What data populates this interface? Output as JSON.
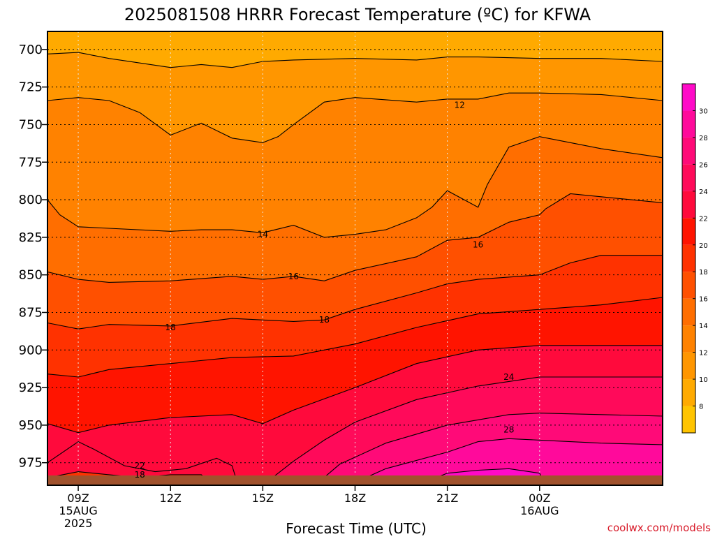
{
  "chart_data": {
    "type": "heatmap",
    "title": "2025081508 HRRR Forecast Temperature (ºC) for KFWA",
    "xlabel": "Forecast Time (UTC)",
    "ylabel": "",
    "credit": "coolwx.com/models",
    "y_levels_hPa": [
      700,
      725,
      750,
      775,
      800,
      825,
      850,
      875,
      900,
      925,
      950,
      975
    ],
    "y_range_hPa": [
      688,
      990
    ],
    "y_scale": "linear, pressure decreasing upward",
    "x_range_hours": [
      8,
      28
    ],
    "x_ticks": [
      {
        "hour": 9,
        "label": "09Z",
        "sub1": "15AUG",
        "sub2": "2025"
      },
      {
        "hour": 12,
        "label": "12Z",
        "sub1": "",
        "sub2": ""
      },
      {
        "hour": 15,
        "label": "15Z",
        "sub1": "",
        "sub2": ""
      },
      {
        "hour": 18,
        "label": "18Z",
        "sub1": "",
        "sub2": ""
      },
      {
        "hour": 21,
        "label": "21Z",
        "sub1": "",
        "sub2": ""
      },
      {
        "hour": 24,
        "label": "00Z",
        "sub1": "16AUG",
        "sub2": ""
      }
    ],
    "grid": true,
    "colorbar": {
      "placement": "right",
      "levels": [
        6,
        8,
        10,
        12,
        14,
        16,
        18,
        20,
        22,
        24,
        26,
        28,
        30,
        32
      ],
      "tick_labels": [
        "8",
        "10",
        "12",
        "14",
        "16",
        "18",
        "20",
        "22",
        "24",
        "26",
        "28",
        "30"
      ],
      "colors": [
        "#ffc400",
        "#ffaa00",
        "#ff9600",
        "#ff8200",
        "#ff6e00",
        "#ff5000",
        "#ff3200",
        "#ff1400",
        "#ff0a3c",
        "#ff0a5a",
        "#ff0a78",
        "#ff0a9b",
        "#ff0ac8"
      ]
    },
    "ground_color": "#a0522d",
    "contour_labels": [
      {
        "text": "12",
        "hour": 21.4,
        "p": 737
      },
      {
        "text": "14",
        "hour": 15.0,
        "p": 823
      },
      {
        "text": "16",
        "hour": 16.0,
        "p": 851
      },
      {
        "text": "16",
        "hour": 22.0,
        "p": 830
      },
      {
        "text": "18",
        "hour": 12.0,
        "p": 885
      },
      {
        "text": "18",
        "hour": 17.0,
        "p": 880
      },
      {
        "text": "22",
        "hour": 11.0,
        "p": 977
      },
      {
        "text": "18",
        "hour": 11.0,
        "p": 983
      },
      {
        "text": "24",
        "hour": 23.0,
        "p": 918
      },
      {
        "text": "28",
        "hour": 23.0,
        "p": 953
      }
    ],
    "isotherms": [
      {
        "value": 10,
        "points": [
          [
            8.0,
            703
          ],
          [
            9.0,
            702
          ],
          [
            10.0,
            706
          ],
          [
            12.0,
            712
          ],
          [
            13.0,
            710
          ],
          [
            14.0,
            712
          ],
          [
            15.0,
            708
          ],
          [
            16.0,
            707
          ],
          [
            18.0,
            706
          ],
          [
            20.0,
            707
          ],
          [
            21.0,
            705
          ],
          [
            22.0,
            705
          ],
          [
            24.0,
            706
          ],
          [
            26.0,
            706
          ],
          [
            28.0,
            708
          ]
        ]
      },
      {
        "value": 12,
        "points": [
          [
            8.0,
            734
          ],
          [
            9.0,
            732
          ],
          [
            10.0,
            734
          ],
          [
            11.0,
            742
          ],
          [
            12.0,
            757
          ],
          [
            13.0,
            749
          ],
          [
            14.0,
            759
          ],
          [
            15.0,
            762
          ],
          [
            15.5,
            758
          ],
          [
            16.0,
            750
          ],
          [
            17.0,
            735
          ],
          [
            18.0,
            732
          ],
          [
            20.0,
            735
          ],
          [
            21.0,
            733
          ],
          [
            22.0,
            733
          ],
          [
            23.0,
            729
          ],
          [
            24.0,
            729
          ],
          [
            26.0,
            730
          ],
          [
            28.0,
            734
          ]
        ]
      },
      {
        "value": 14,
        "points": [
          [
            8.0,
            800
          ],
          [
            8.4,
            810
          ],
          [
            9.0,
            818
          ],
          [
            10.0,
            819
          ],
          [
            12.0,
            821
          ],
          [
            13.0,
            820
          ],
          [
            14.0,
            820
          ],
          [
            15.0,
            822
          ],
          [
            16.0,
            817
          ],
          [
            17.0,
            825
          ],
          [
            18.0,
            823
          ],
          [
            19.0,
            820
          ],
          [
            20.0,
            812
          ],
          [
            20.5,
            805
          ],
          [
            21.0,
            794
          ],
          [
            22.0,
            805
          ],
          [
            22.3,
            790
          ],
          [
            23.0,
            765
          ],
          [
            24.0,
            758
          ],
          [
            25.0,
            762
          ],
          [
            26.0,
            766
          ],
          [
            28.0,
            772
          ]
        ]
      },
      {
        "value": 16,
        "points": [
          [
            8.0,
            848
          ],
          [
            9.0,
            853
          ],
          [
            10.0,
            855
          ],
          [
            12.0,
            854
          ],
          [
            14.0,
            851
          ],
          [
            15.0,
            853
          ],
          [
            16.0,
            851
          ],
          [
            17.0,
            854
          ],
          [
            18.0,
            847
          ],
          [
            20.0,
            838
          ],
          [
            21.0,
            827
          ],
          [
            22.0,
            825
          ],
          [
            23.0,
            815
          ],
          [
            24.0,
            810
          ],
          [
            24.2,
            806
          ],
          [
            25.0,
            796
          ],
          [
            26.0,
            798
          ],
          [
            28.0,
            802
          ]
        ]
      },
      {
        "value": 18,
        "points": [
          [
            8.0,
            882
          ],
          [
            9.0,
            886
          ],
          [
            10.0,
            883
          ],
          [
            12.0,
            884
          ],
          [
            14.0,
            879
          ],
          [
            16.0,
            881
          ],
          [
            17.0,
            880
          ],
          [
            18.0,
            873
          ],
          [
            20.0,
            862
          ],
          [
            21.0,
            856
          ],
          [
            22.0,
            853
          ],
          [
            24.0,
            850
          ],
          [
            25.0,
            842
          ],
          [
            26.0,
            837
          ],
          [
            28.0,
            837
          ]
        ]
      },
      {
        "value": 20,
        "points": [
          [
            8.0,
            916
          ],
          [
            9.0,
            918
          ],
          [
            10.0,
            913
          ],
          [
            12.0,
            909
          ],
          [
            14.0,
            905
          ],
          [
            16.0,
            904
          ],
          [
            18.0,
            896
          ],
          [
            20.0,
            885
          ],
          [
            22.0,
            876
          ],
          [
            24.0,
            873
          ],
          [
            26.0,
            870
          ],
          [
            28.0,
            865
          ]
        ]
      },
      {
        "value": 22,
        "points": [
          [
            8.0,
            949
          ],
          [
            9.0,
            955
          ],
          [
            10.0,
            950
          ],
          [
            12.0,
            945
          ],
          [
            14.0,
            943
          ],
          [
            15.0,
            949
          ],
          [
            16.0,
            940
          ],
          [
            18.0,
            925
          ],
          [
            20.0,
            909
          ],
          [
            22.0,
            900
          ],
          [
            24.0,
            897
          ],
          [
            26.0,
            897
          ],
          [
            28.0,
            897
          ]
        ]
      },
      {
        "value": 24,
        "points": [
          [
            15.0,
            990
          ],
          [
            16.0,
            974
          ],
          [
            17.0,
            960
          ],
          [
            18.0,
            948
          ],
          [
            20.0,
            933
          ],
          [
            22.0,
            924
          ],
          [
            24.0,
            918
          ],
          [
            26.0,
            918
          ],
          [
            28.0,
            918
          ]
        ]
      },
      {
        "value": 26,
        "points": [
          [
            16.7,
            990
          ],
          [
            17.5,
            976
          ],
          [
            19.0,
            962
          ],
          [
            21.0,
            950
          ],
          [
            23.0,
            943
          ],
          [
            24.0,
            942
          ],
          [
            26.0,
            943
          ],
          [
            28.0,
            944
          ]
        ]
      },
      {
        "value": 28,
        "points": [
          [
            17.8,
            990
          ],
          [
            19.0,
            979
          ],
          [
            21.0,
            968
          ],
          [
            22.0,
            961
          ],
          [
            23.0,
            959
          ],
          [
            24.0,
            960
          ],
          [
            26.0,
            962
          ],
          [
            28.0,
            963
          ]
        ]
      },
      {
        "value": 30,
        "points": [
          [
            20.0,
            990
          ],
          [
            21.0,
            982
          ],
          [
            22.0,
            980
          ],
          [
            23.0,
            979
          ],
          [
            24.0,
            982
          ],
          [
            24.2,
            990
          ]
        ]
      },
      {
        "value": 22,
        "points": [
          [
            8.0,
            975
          ],
          [
            9.0,
            961
          ],
          [
            9.5,
            966
          ],
          [
            10.5,
            977
          ],
          [
            11.5,
            981
          ],
          [
            12.5,
            979
          ],
          [
            13.5,
            972
          ],
          [
            14.0,
            977
          ],
          [
            14.2,
            990
          ]
        ]
      },
      {
        "value": 18,
        "points": [
          [
            8.0,
            985
          ],
          [
            9.0,
            981
          ],
          [
            10.0,
            983
          ],
          [
            11.0,
            985
          ],
          [
            12.0,
            983
          ],
          [
            13.0,
            983
          ],
          [
            13.4,
            990
          ]
        ]
      }
    ]
  }
}
